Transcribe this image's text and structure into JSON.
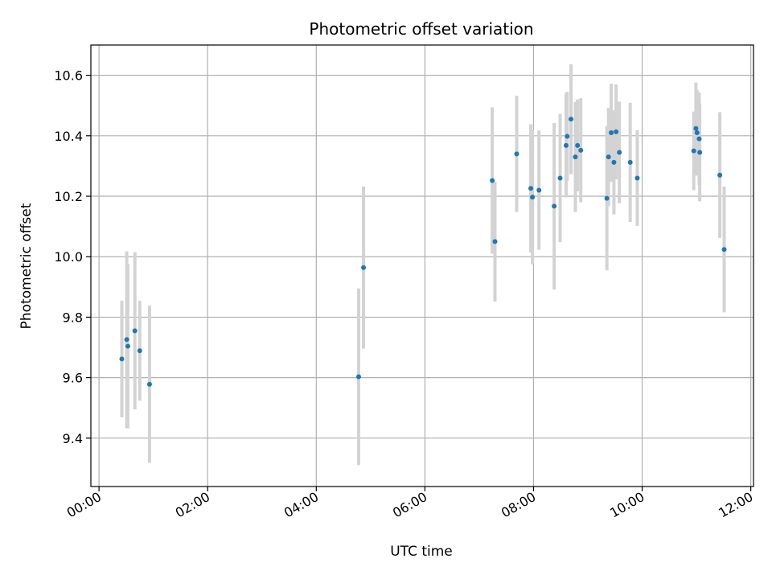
{
  "chart_data": {
    "type": "scatter",
    "title": "Photometric offset variation",
    "xlabel": "UTC time",
    "ylabel": "Photometric offset",
    "x_unit": "hours",
    "xlim": [
      -0.15,
      12.05
    ],
    "ylim": [
      9.24,
      10.7
    ],
    "x_ticks": [
      {
        "value": 0,
        "label": "00:00"
      },
      {
        "value": 2,
        "label": "02:00"
      },
      {
        "value": 4,
        "label": "04:00"
      },
      {
        "value": 6,
        "label": "06:00"
      },
      {
        "value": 8,
        "label": "08:00"
      },
      {
        "value": 10,
        "label": "10:00"
      },
      {
        "value": 12,
        "label": "12:00"
      }
    ],
    "y_ticks": [
      {
        "value": 9.4,
        "label": "9.4"
      },
      {
        "value": 9.6,
        "label": "9.6"
      },
      {
        "value": 9.8,
        "label": "9.8"
      },
      {
        "value": 10.0,
        "label": "10.0"
      },
      {
        "value": 10.2,
        "label": "10.2"
      },
      {
        "value": 10.4,
        "label": "10.4"
      },
      {
        "value": 10.6,
        "label": "10.6"
      }
    ],
    "grid": true,
    "colors": {
      "point": "#1f77b4",
      "errorbar": "#d3d3d3",
      "grid": "#b0b0b0"
    },
    "points": [
      {
        "x": 0.42,
        "y": 9.662,
        "err": 0.193
      },
      {
        "x": 0.51,
        "y": 9.726,
        "err": 0.292
      },
      {
        "x": 0.53,
        "y": 9.704,
        "err": 0.272
      },
      {
        "x": 0.66,
        "y": 9.755,
        "err": 0.26
      },
      {
        "x": 0.75,
        "y": 9.689,
        "err": 0.165
      },
      {
        "x": 0.93,
        "y": 9.578,
        "err": 0.26
      },
      {
        "x": 4.78,
        "y": 9.603,
        "err": 0.292
      },
      {
        "x": 4.87,
        "y": 9.964,
        "err": 0.268
      },
      {
        "x": 7.24,
        "y": 10.252,
        "err": 0.242
      },
      {
        "x": 7.29,
        "y": 10.05,
        "err": 0.198
      },
      {
        "x": 7.69,
        "y": 10.34,
        "err": 0.192
      },
      {
        "x": 7.95,
        "y": 10.226,
        "err": 0.212
      },
      {
        "x": 7.98,
        "y": 10.197,
        "err": 0.222
      },
      {
        "x": 8.1,
        "y": 10.22,
        "err": 0.197
      },
      {
        "x": 8.38,
        "y": 10.167,
        "err": 0.275
      },
      {
        "x": 8.49,
        "y": 10.26,
        "err": 0.212
      },
      {
        "x": 8.6,
        "y": 10.368,
        "err": 0.172
      },
      {
        "x": 8.62,
        "y": 10.398,
        "err": 0.147
      },
      {
        "x": 8.69,
        "y": 10.455,
        "err": 0.182
      },
      {
        "x": 8.77,
        "y": 10.33,
        "err": 0.182
      },
      {
        "x": 8.81,
        "y": 10.368,
        "err": 0.152
      },
      {
        "x": 8.87,
        "y": 10.352,
        "err": 0.172
      },
      {
        "x": 9.35,
        "y": 10.193,
        "err": 0.238
      },
      {
        "x": 9.38,
        "y": 10.33,
        "err": 0.162
      },
      {
        "x": 9.43,
        "y": 10.41,
        "err": 0.162
      },
      {
        "x": 9.48,
        "y": 10.312,
        "err": 0.172
      },
      {
        "x": 9.52,
        "y": 10.413,
        "err": 0.157
      },
      {
        "x": 9.58,
        "y": 10.345,
        "err": 0.168
      },
      {
        "x": 9.78,
        "y": 10.312,
        "err": 0.197
      },
      {
        "x": 9.91,
        "y": 10.26,
        "err": 0.158
      },
      {
        "x": 10.95,
        "y": 10.35,
        "err": 0.13
      },
      {
        "x": 10.99,
        "y": 10.424,
        "err": 0.152
      },
      {
        "x": 11.01,
        "y": 10.41,
        "err": 0.142
      },
      {
        "x": 11.05,
        "y": 10.39,
        "err": 0.153
      },
      {
        "x": 11.06,
        "y": 10.345,
        "err": 0.162
      },
      {
        "x": 11.43,
        "y": 10.27,
        "err": 0.208
      },
      {
        "x": 11.51,
        "y": 10.024,
        "err": 0.208
      }
    ]
  }
}
